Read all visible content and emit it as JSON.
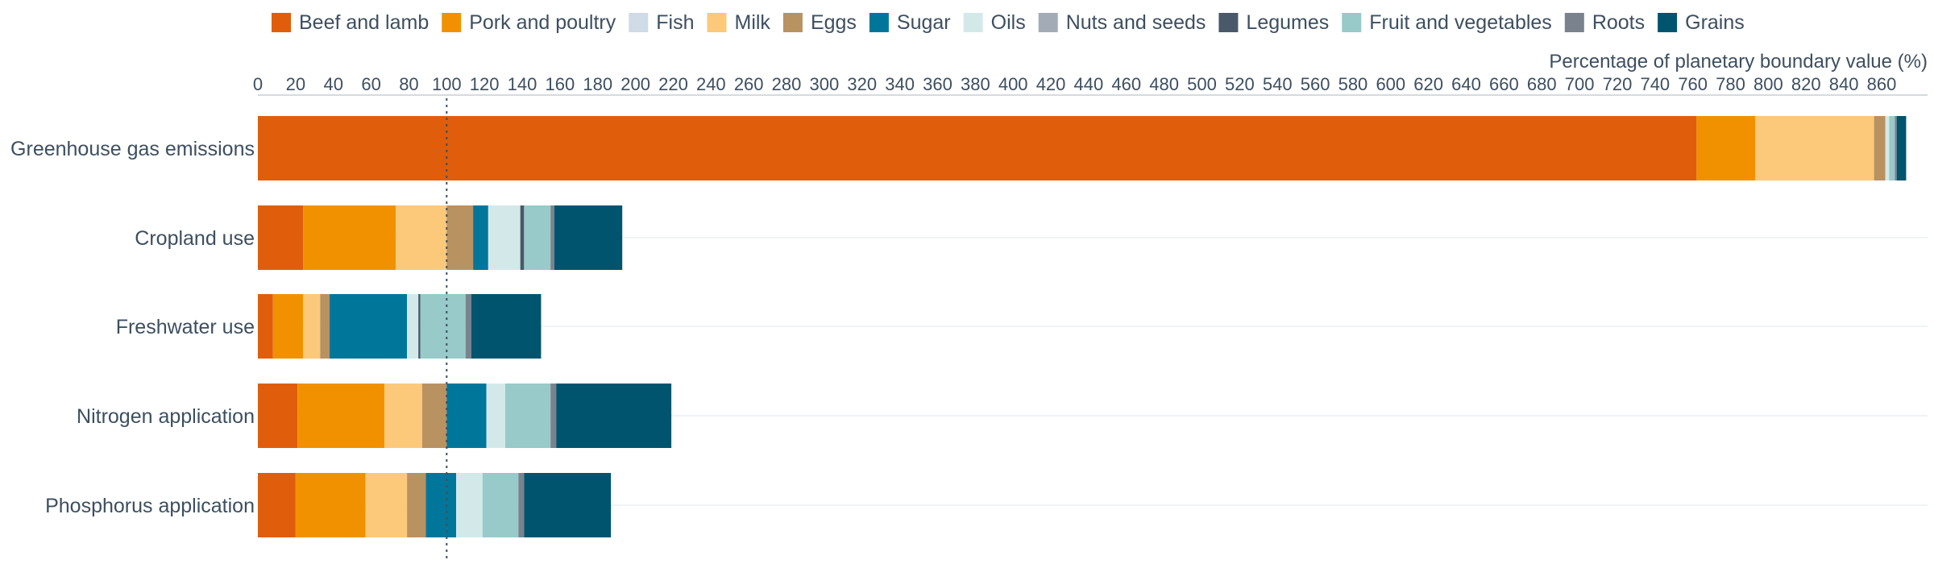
{
  "chart_data": {
    "type": "bar",
    "orientation": "horizontal",
    "stacked": true,
    "xlabel": "Percentage of planetary boundary value (%)",
    "xlim": [
      0,
      880
    ],
    "x_ticks": [
      0,
      20,
      40,
      60,
      80,
      100,
      120,
      140,
      160,
      180,
      200,
      220,
      240,
      260,
      280,
      300,
      320,
      340,
      360,
      380,
      400,
      420,
      440,
      460,
      480,
      500,
      520,
      540,
      560,
      580,
      600,
      620,
      640,
      660,
      680,
      700,
      720,
      740,
      760,
      780,
      800,
      820,
      840,
      860
    ],
    "reference_line": {
      "value": 100,
      "style": "dotted"
    },
    "legend_position": "top",
    "grid": "horizontal",
    "categories": [
      "Greenhouse gas emissions",
      "Cropland use",
      "Freshwater use",
      "Nitrogen application",
      "Phosphorus application"
    ],
    "series": [
      {
        "name": "Beef and lamb",
        "color": "#e05e0b",
        "values": [
          762,
          24,
          8,
          21,
          20
        ]
      },
      {
        "name": "Pork and poultry",
        "color": "#f29100",
        "values": [
          31,
          49,
          16,
          46,
          37
        ]
      },
      {
        "name": "Fish",
        "color": "#cfdbe6",
        "values": [
          0,
          0,
          0,
          0,
          0
        ]
      },
      {
        "name": "Milk",
        "color": "#fcc97a",
        "values": [
          63,
          27,
          9,
          20,
          22
        ]
      },
      {
        "name": "Eggs",
        "color": "#b99262",
        "values": [
          6,
          14,
          5,
          13,
          10
        ]
      },
      {
        "name": "Sugar",
        "color": "#00779a",
        "values": [
          0,
          8,
          41,
          21,
          16
        ]
      },
      {
        "name": "Oils",
        "color": "#d3e9e9",
        "values": [
          2,
          17,
          6,
          10,
          14
        ]
      },
      {
        "name": "Nuts and seeds",
        "color": "#a3acb6",
        "values": [
          0,
          0,
          0,
          0,
          0
        ]
      },
      {
        "name": "Legumes",
        "color": "#49596a",
        "values": [
          0,
          2,
          1,
          0,
          0
        ]
      },
      {
        "name": "Fruit and vegetables",
        "color": "#97cac9",
        "values": [
          3,
          14,
          24,
          24,
          19
        ]
      },
      {
        "name": "Roots",
        "color": "#7a828e",
        "values": [
          1,
          2,
          3,
          3,
          3
        ]
      },
      {
        "name": "Grains",
        "color": "#01546e",
        "values": [
          5,
          36,
          37,
          61,
          46
        ]
      }
    ]
  }
}
